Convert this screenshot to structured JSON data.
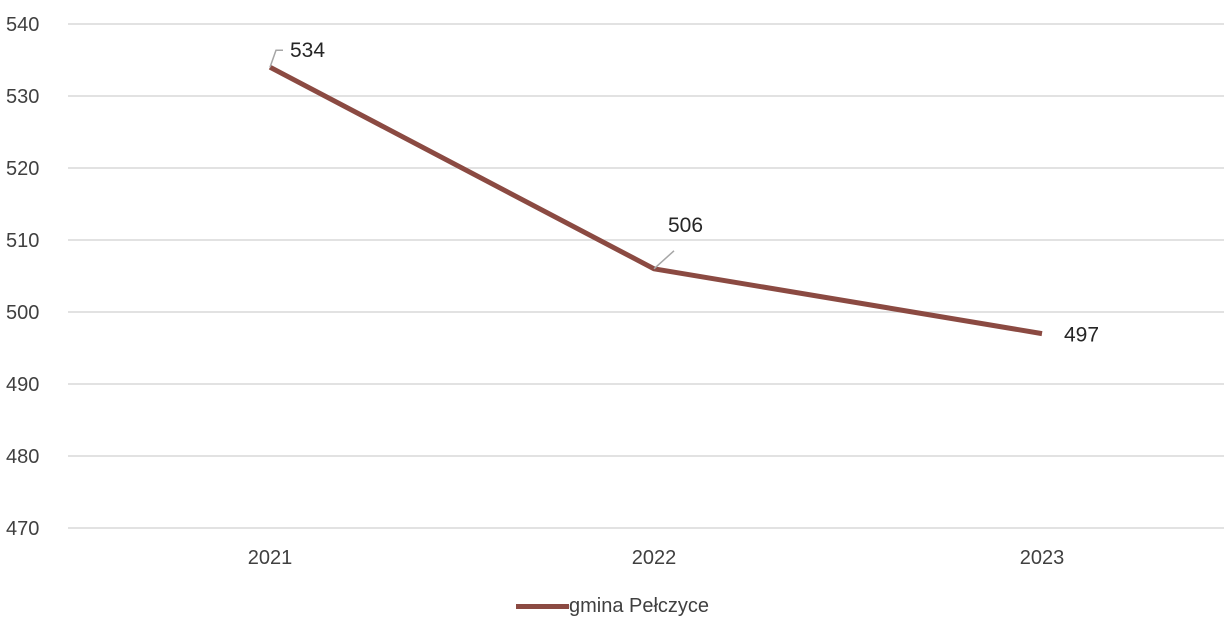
{
  "chart_data": {
    "type": "line",
    "categories": [
      "2021",
      "2022",
      "2023"
    ],
    "series": [
      {
        "name": "gmina Pełczyce",
        "values": [
          534,
          506,
          497
        ],
        "color": "#8B4A42"
      }
    ],
    "data_labels": [
      "534",
      "506",
      "497"
    ],
    "y_ticks": [
      "470",
      "480",
      "490",
      "500",
      "510",
      "520",
      "530",
      "540"
    ],
    "ylim": [
      470,
      540
    ],
    "grid": true,
    "legend_position": "bottom"
  },
  "legend": {
    "label": "gmina Pełczyce"
  }
}
